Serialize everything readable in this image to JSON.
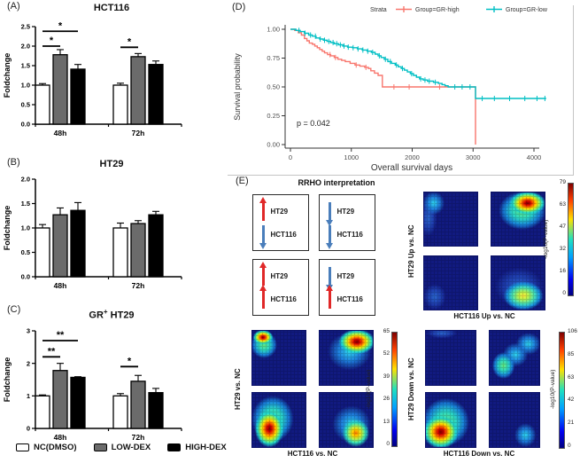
{
  "panels": {
    "a": "(A)",
    "b": "(B)",
    "c": "(C)",
    "d": "(D)",
    "e": "(E)"
  },
  "bar_legend": {
    "items": [
      {
        "label": "NC(DMSO)",
        "color": "#ffffff"
      },
      {
        "label": "LOW-DEX",
        "color": "#6b6b6b"
      },
      {
        "label": "HIGH-DEX",
        "color": "#000000"
      }
    ]
  },
  "titles": {
    "a_title": "HCT116",
    "b_title": "HT29",
    "c_title_main": "GR",
    "c_title_sup": "+",
    "c_title_tail": " HT29"
  },
  "rrho_interpretation": {
    "title": "RRHO interpretation",
    "up_color": "#e02828",
    "down_color": "#4a7ebb",
    "boxes": [
      {
        "rows": [
          {
            "arrow": "up",
            "tone": "up",
            "label": "HT29"
          },
          {
            "arrow": "down",
            "tone": "down",
            "label": "HCT116"
          }
        ]
      },
      {
        "rows": [
          {
            "arrow": "down",
            "tone": "down",
            "label": "HT29"
          },
          {
            "arrow": "down",
            "tone": "down",
            "label": "HCT116"
          }
        ]
      },
      {
        "rows": [
          {
            "arrow": "up",
            "tone": "up",
            "label": "HT29"
          },
          {
            "arrow": "up",
            "tone": "up",
            "label": "HCT116"
          }
        ]
      },
      {
        "rows": [
          {
            "arrow": "down",
            "tone": "down",
            "label": "HT29"
          },
          {
            "arrow": "up",
            "tone": "up",
            "label": "HCT116"
          }
        ]
      }
    ]
  },
  "chart_data": [
    {
      "id": "hct116",
      "type": "bar",
      "panel": "A",
      "title": "HCT116",
      "ylabel": "Foldchange",
      "ylim": [
        0,
        2.5
      ],
      "yticks": [
        "0.0",
        "0.5",
        "1.0",
        "1.5",
        "2.0",
        "2.5"
      ],
      "categories": [
        "48h",
        "72h"
      ],
      "series": [
        {
          "name": "NC(DMSO)",
          "color": "#ffffff",
          "values": [
            1.0,
            1.0
          ],
          "errors": [
            0.04,
            0.05
          ]
        },
        {
          "name": "LOW-DEX",
          "color": "#6b6b6b",
          "values": [
            1.78,
            1.73
          ],
          "errors": [
            0.13,
            0.08
          ]
        },
        {
          "name": "HIGH-DEX",
          "color": "#000000",
          "values": [
            1.41,
            1.53
          ],
          "errors": [
            0.12,
            0.09
          ]
        }
      ],
      "significance": [
        {
          "category": 0,
          "from": 0,
          "to": 2,
          "label": "*",
          "y": 2.38
        },
        {
          "category": 0,
          "from": 0,
          "to": 1,
          "label": "*",
          "y": 2.0
        },
        {
          "category": 1,
          "from": 0,
          "to": 1,
          "label": "*",
          "y": 1.97
        }
      ]
    },
    {
      "id": "ht29",
      "type": "bar",
      "panel": "B",
      "title": "HT29",
      "ylabel": "Foldchange",
      "ylim": [
        0,
        2.0
      ],
      "yticks": [
        "0.0",
        "0.5",
        "1.0",
        "1.5",
        "2.0"
      ],
      "categories": [
        "48h",
        "72h"
      ],
      "series": [
        {
          "name": "NC(DMSO)",
          "color": "#ffffff",
          "values": [
            1.0,
            1.0
          ],
          "errors": [
            0.07,
            0.1
          ]
        },
        {
          "name": "LOW-DEX",
          "color": "#6b6b6b",
          "values": [
            1.27,
            1.09
          ],
          "errors": [
            0.14,
            0.06
          ]
        },
        {
          "name": "HIGH-DEX",
          "color": "#000000",
          "values": [
            1.36,
            1.27
          ],
          "errors": [
            0.16,
            0.07
          ]
        }
      ],
      "significance": []
    },
    {
      "id": "gr_ht29",
      "type": "bar",
      "panel": "C",
      "title": "GR+ HT29",
      "ylabel": "Foldchange",
      "ylim": [
        0,
        3
      ],
      "yticks": [
        "0",
        "1",
        "2",
        "3"
      ],
      "categories": [
        "48h",
        "72h"
      ],
      "series": [
        {
          "name": "NC(DMSO)",
          "color": "#ffffff",
          "values": [
            1.0,
            1.0
          ],
          "errors": [
            0.03,
            0.07
          ]
        },
        {
          "name": "LOW-DEX",
          "color": "#6b6b6b",
          "values": [
            1.78,
            1.45
          ],
          "errors": [
            0.22,
            0.18
          ]
        },
        {
          "name": "HIGH-DEX",
          "color": "#000000",
          "values": [
            1.57,
            1.1
          ],
          "errors": [
            0.02,
            0.13
          ]
        }
      ],
      "significance": [
        {
          "category": 0,
          "from": 0,
          "to": 2,
          "label": "**",
          "y": 2.7
        },
        {
          "category": 0,
          "from": 0,
          "to": 1,
          "label": "**",
          "y": 2.2
        },
        {
          "category": 1,
          "from": 0,
          "to": 1,
          "label": "*",
          "y": 1.9
        }
      ]
    },
    {
      "id": "survival",
      "type": "line",
      "panel": "D",
      "legend_title": "Strata",
      "xlabel": "Overall survival days",
      "ylabel": "Survival probability",
      "xlim": [
        0,
        4200
      ],
      "ylim": [
        0,
        1
      ],
      "xticks": [
        0,
        1000,
        2000,
        3000,
        4000
      ],
      "yticks": [
        "0.00",
        "0.25",
        "0.50",
        "0.75",
        "1.00"
      ],
      "p_value": "p = 0.042",
      "series": [
        {
          "name": "Group=GR-high",
          "color": "#f8766d",
          "steps": [
            [
              0,
              1.0
            ],
            [
              70,
              0.99
            ],
            [
              130,
              0.97
            ],
            [
              180,
              0.95
            ],
            [
              230,
              0.92
            ],
            [
              270,
              0.9
            ],
            [
              310,
              0.88
            ],
            [
              360,
              0.87
            ],
            [
              400,
              0.855
            ],
            [
              440,
              0.84
            ],
            [
              480,
              0.825
            ],
            [
              520,
              0.81
            ],
            [
              560,
              0.795
            ],
            [
              610,
              0.78
            ],
            [
              660,
              0.77
            ],
            [
              720,
              0.755
            ],
            [
              780,
              0.74
            ],
            [
              840,
              0.73
            ],
            [
              900,
              0.72
            ],
            [
              980,
              0.705
            ],
            [
              1060,
              0.69
            ],
            [
              1140,
              0.68
            ],
            [
              1220,
              0.67
            ],
            [
              1280,
              0.66
            ],
            [
              1320,
              0.64
            ],
            [
              1380,
              0.62
            ],
            [
              1440,
              0.6
            ],
            [
              1510,
              0.5
            ],
            [
              3040,
              0.5
            ],
            [
              3040,
              0.0
            ]
          ],
          "censors": [
            650,
            740,
            1080,
            1240,
            1700,
            1950,
            2450
          ]
        },
        {
          "name": "Group=GR-low",
          "color": "#00bfc4",
          "steps": [
            [
              0,
              1.0
            ],
            [
              90,
              0.99
            ],
            [
              160,
              0.98
            ],
            [
              230,
              0.965
            ],
            [
              300,
              0.95
            ],
            [
              360,
              0.94
            ],
            [
              420,
              0.925
            ],
            [
              480,
              0.915
            ],
            [
              540,
              0.905
            ],
            [
              600,
              0.895
            ],
            [
              660,
              0.885
            ],
            [
              720,
              0.875
            ],
            [
              790,
              0.865
            ],
            [
              860,
              0.855
            ],
            [
              940,
              0.845
            ],
            [
              1020,
              0.84
            ],
            [
              1100,
              0.83
            ],
            [
              1180,
              0.82
            ],
            [
              1260,
              0.81
            ],
            [
              1330,
              0.8
            ],
            [
              1390,
              0.785
            ],
            [
              1440,
              0.77
            ],
            [
              1490,
              0.755
            ],
            [
              1540,
              0.74
            ],
            [
              1600,
              0.72
            ],
            [
              1660,
              0.705
            ],
            [
              1720,
              0.69
            ],
            [
              1770,
              0.675
            ],
            [
              1820,
              0.66
            ],
            [
              1870,
              0.645
            ],
            [
              1920,
              0.63
            ],
            [
              1970,
              0.615
            ],
            [
              2020,
              0.6
            ],
            [
              2070,
              0.585
            ],
            [
              2120,
              0.57
            ],
            [
              2180,
              0.56
            ],
            [
              2250,
              0.55
            ],
            [
              2350,
              0.54
            ],
            [
              2430,
              0.53
            ],
            [
              2490,
              0.52
            ],
            [
              2540,
              0.51
            ],
            [
              2590,
              0.5
            ],
            [
              3040,
              0.5
            ],
            [
              3040,
              0.4
            ],
            [
              4200,
              0.4
            ]
          ],
          "censors": [
            140,
            240,
            330,
            410,
            490,
            560,
            630,
            700,
            760,
            820,
            880,
            950,
            1030,
            1110,
            1190,
            1270,
            1350,
            1460,
            1560,
            1640,
            1740,
            1840,
            1990,
            2140,
            2210,
            2280,
            2380,
            2700,
            2820,
            2950,
            3150,
            3350,
            3600,
            3850,
            4050,
            4180
          ]
        }
      ]
    },
    {
      "id": "rrho_up",
      "type": "heatmap",
      "ylabel": "HT29  Up  vs.  NC",
      "xlabel": "HCT116  Up  vs.  NC",
      "colorbar_label": "-log10(P-value)",
      "colorbar_ticks": [
        "79",
        "63",
        "47",
        "32",
        "16",
        "0"
      ],
      "quads": [
        [
          {
            "x": 18,
            "y": 20,
            "rx": 26,
            "ry": 28,
            "c": "cyan"
          },
          {
            "x": 8,
            "y": 48,
            "rx": 20,
            "ry": 42,
            "c": "lightblue"
          }
        ],
        [
          {
            "x": 68,
            "y": 20,
            "rx": 40,
            "ry": 26,
            "c": "red"
          },
          {
            "x": 58,
            "y": 34,
            "rx": 54,
            "ry": 44,
            "c": "green"
          }
        ],
        [
          {
            "x": 20,
            "y": 76,
            "rx": 26,
            "ry": 30,
            "c": "lightblue"
          }
        ],
        [
          {
            "x": 60,
            "y": 74,
            "rx": 44,
            "ry": 32,
            "c": "yellow"
          },
          {
            "x": 52,
            "y": 58,
            "rx": 56,
            "ry": 46,
            "c": "lightblue"
          }
        ]
      ]
    },
    {
      "id": "rrho_all",
      "type": "heatmap",
      "ylabel": "HT29  vs.  NC",
      "xlabel": "HCT116  vs.  NC",
      "colorbar_label": "-log10(P-value)",
      "colorbar_ticks": [
        "65",
        "52",
        "39",
        "26",
        "13",
        "0"
      ],
      "quads": [
        [
          {
            "x": 20,
            "y": 12,
            "rx": 22,
            "ry": 16,
            "c": "red"
          },
          {
            "x": 22,
            "y": 26,
            "rx": 30,
            "ry": 30,
            "c": "green"
          }
        ],
        [
          {
            "x": 70,
            "y": 20,
            "rx": 40,
            "ry": 27,
            "c": "red"
          },
          {
            "x": 56,
            "y": 38,
            "rx": 52,
            "ry": 44,
            "c": "cyan"
          }
        ],
        [
          {
            "x": 32,
            "y": 66,
            "rx": 32,
            "ry": 40,
            "c": "red"
          },
          {
            "x": 38,
            "y": 48,
            "rx": 48,
            "ry": 52,
            "c": "green"
          }
        ],
        [
          {
            "x": 68,
            "y": 74,
            "rx": 32,
            "ry": 32,
            "c": "orange"
          },
          {
            "x": 60,
            "y": 58,
            "rx": 46,
            "ry": 44,
            "c": "cyan"
          }
        ]
      ]
    },
    {
      "id": "rrho_down",
      "type": "heatmap",
      "ylabel": "HT29  Down  vs.  NC",
      "xlabel": "HCT116  Down  vs.  NC",
      "colorbar_label": "-log10(P-value)",
      "colorbar_ticks": [
        "106",
        "85",
        "63",
        "42",
        "21",
        "0"
      ],
      "quads": [
        [
          {
            "x": 32,
            "y": 4,
            "rx": 38,
            "ry": 12,
            "c": "lightblue"
          }
        ],
        [
          {
            "x": 28,
            "y": 64,
            "rx": 28,
            "ry": 30,
            "c": "green"
          },
          {
            "x": 52,
            "y": 44,
            "rx": 32,
            "ry": 28,
            "c": "cyan"
          },
          {
            "x": 78,
            "y": 24,
            "rx": 32,
            "ry": 26,
            "c": "cyan"
          }
        ],
        [
          {
            "x": 30,
            "y": 72,
            "rx": 42,
            "ry": 36,
            "c": "red"
          },
          {
            "x": 40,
            "y": 54,
            "rx": 58,
            "ry": 54,
            "c": "green"
          }
        ],
        [
          {
            "x": 72,
            "y": 78,
            "rx": 28,
            "ry": 28,
            "c": "cyan"
          }
        ]
      ]
    }
  ]
}
